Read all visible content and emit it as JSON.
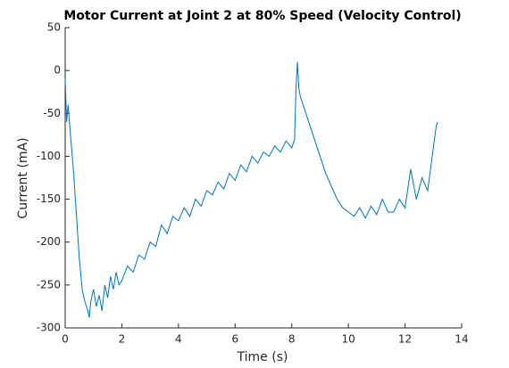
{
  "chart_data": {
    "type": "line",
    "title": "Motor Current at Joint 2 at 80% Speed (Velocity Control)",
    "x_label": "Time (s)",
    "y_label": "Current (mA)",
    "xlim": [
      0,
      14
    ],
    "xticks": [
      0,
      2,
      4,
      6,
      8,
      10,
      12,
      14
    ],
    "ylim": [
      -300,
      50
    ],
    "yticks": [
      -300,
      -250,
      -200,
      -150,
      -100,
      -50,
      0,
      50
    ],
    "grid": false,
    "series": [
      {
        "name": "Current",
        "color": "#0072bd",
        "x": [
          0,
          0.05,
          0.1,
          0.2,
          0.3,
          0.4,
          0.5,
          0.6,
          0.7,
          0.8,
          0.85,
          0.9,
          1.0,
          1.1,
          1.2,
          1.3,
          1.4,
          1.5,
          1.6,
          1.7,
          1.8,
          1.9,
          2.0,
          2.2,
          2.4,
          2.6,
          2.8,
          3.0,
          3.2,
          3.4,
          3.6,
          3.8,
          4.0,
          4.2,
          4.4,
          4.6,
          4.8,
          5.0,
          5.2,
          5.4,
          5.6,
          5.8,
          6.0,
          6.2,
          6.4,
          6.6,
          6.8,
          7.0,
          7.2,
          7.4,
          7.6,
          7.8,
          8.0,
          8.1,
          8.15,
          8.2,
          8.25,
          8.3,
          8.4,
          8.6,
          8.8,
          9.0,
          9.2,
          9.4,
          9.6,
          9.8,
          10.0,
          10.2,
          10.4,
          10.6,
          10.8,
          11.0,
          11.2,
          11.4,
          11.6,
          11.8,
          12.0,
          12.2,
          12.4,
          12.6,
          12.8,
          13.0,
          13.1,
          13.15
        ],
        "values": [
          -10,
          -60,
          -40,
          -80,
          -120,
          -170,
          -220,
          -255,
          -270,
          -280,
          -288,
          -270,
          -255,
          -275,
          -262,
          -280,
          -250,
          -265,
          -240,
          -255,
          -235,
          -250,
          -245,
          -228,
          -235,
          -215,
          -220,
          -200,
          -205,
          -180,
          -190,
          -170,
          -175,
          -160,
          -170,
          -150,
          -158,
          -140,
          -145,
          -130,
          -138,
          -120,
          -128,
          -110,
          -118,
          -100,
          -108,
          -95,
          -100,
          -88,
          -95,
          -82,
          -90,
          -80,
          -20,
          10,
          -20,
          -30,
          -40,
          -60,
          -80,
          -100,
          -120,
          -135,
          -150,
          -160,
          -165,
          -170,
          -160,
          -172,
          -158,
          -168,
          -150,
          -165,
          -165,
          -150,
          -160,
          -115,
          -150,
          -125,
          -140,
          -90,
          -65,
          -60
        ]
      }
    ]
  }
}
